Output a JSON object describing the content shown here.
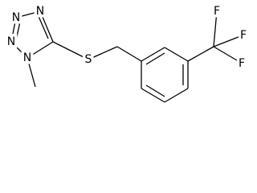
{
  "atoms": {
    "labels": [
      "N",
      "N",
      "N",
      "N",
      "S",
      "F",
      "F",
      "F"
    ]
  }
}
